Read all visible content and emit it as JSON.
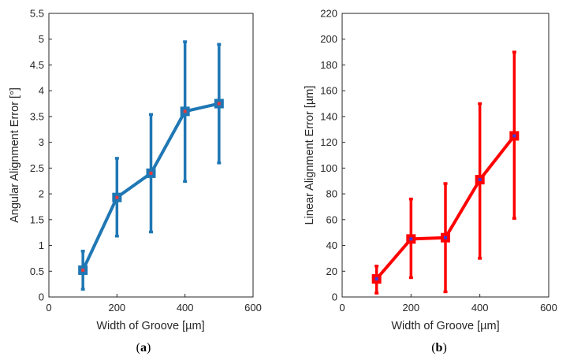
{
  "figure": {
    "captions": [
      "(a)",
      "(b)"
    ],
    "caption_parts": [
      {
        "open": "(",
        "letter": "a",
        "close": ")"
      },
      {
        "open": "(",
        "letter": "b",
        "close": ")"
      }
    ]
  },
  "chart_data": [
    {
      "type": "line",
      "caption": "(a)",
      "xlabel": "Width of Groove [µm]",
      "ylabel": "Angular Alignment Error [°]",
      "xlim": [
        0,
        600
      ],
      "ylim": [
        0,
        5.5
      ],
      "xticks": [
        0,
        200,
        400,
        600
      ],
      "xtick_labels": [
        "0",
        "200",
        "400",
        "600"
      ],
      "yticks": [
        0,
        0.5,
        1,
        1.5,
        2,
        2.5,
        3,
        3.5,
        4,
        4.5,
        5,
        5.5
      ],
      "ytick_labels": [
        "0",
        "0.5",
        "1",
        "1.5",
        "2",
        "2.5",
        "3",
        "3.5",
        "4",
        "4.5",
        "5",
        "5.5"
      ],
      "line_color": "#1f77b4",
      "marker_color": "#e8383d",
      "series": [
        {
          "name": "Angular alignment error",
          "x": [
            100,
            200,
            300,
            400,
            500
          ],
          "y": [
            0.52,
            1.93,
            2.4,
            3.6,
            3.75
          ],
          "err_low": [
            0.15,
            1.18,
            1.26,
            2.24,
            2.6
          ],
          "err_high": [
            0.89,
            2.69,
            3.54,
            4.95,
            4.9
          ]
        }
      ]
    },
    {
      "type": "line",
      "caption": "(b)",
      "xlabel": "Width of Groove [µm]",
      "ylabel": "Linear Alignment Error [µm]",
      "xlim": [
        0,
        600
      ],
      "ylim": [
        0,
        220
      ],
      "xticks": [
        0,
        200,
        400,
        600
      ],
      "xtick_labels": [
        "0",
        "200",
        "400",
        "600"
      ],
      "yticks": [
        0,
        20,
        40,
        60,
        80,
        100,
        120,
        140,
        160,
        180,
        200,
        220
      ],
      "ytick_labels": [
        "0",
        "20",
        "40",
        "60",
        "80",
        "100",
        "120",
        "140",
        "160",
        "180",
        "200",
        "220"
      ],
      "line_color": "#ff0000",
      "marker_color": "#3b3bdc",
      "series": [
        {
          "name": "Linear alignment error",
          "x": [
            100,
            200,
            300,
            400,
            500
          ],
          "y": [
            14,
            45,
            46,
            91,
            125
          ],
          "err_low": [
            3,
            15,
            4,
            30,
            61
          ],
          "err_high": [
            24,
            76,
            88,
            150,
            190
          ]
        }
      ]
    }
  ]
}
